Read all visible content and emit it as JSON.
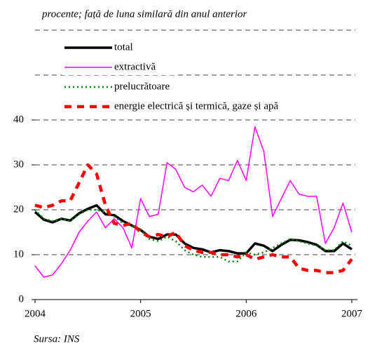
{
  "chart_data": {
    "type": "line",
    "subtitle": "procente; față de luna similară din anul anterior",
    "source": "Sursa: INS",
    "xlim": [
      2004,
      2007
    ],
    "xticks": [
      2004,
      2005,
      2006,
      2007
    ],
    "ylim": [
      0,
      60
    ],
    "yticks": [
      0,
      10,
      20,
      30,
      40
    ],
    "ygrid": [
      10,
      20,
      30,
      40,
      50,
      60
    ],
    "x": [
      2004,
      2004.083,
      2004.167,
      2004.25,
      2004.333,
      2004.417,
      2004.5,
      2004.583,
      2004.667,
      2004.75,
      2004.833,
      2004.917,
      2005,
      2005.083,
      2005.167,
      2005.25,
      2005.333,
      2005.417,
      2005.5,
      2005.583,
      2005.667,
      2005.75,
      2005.833,
      2005.917,
      2006,
      2006.083,
      2006.167,
      2006.25,
      2006.333,
      2006.417,
      2006.5,
      2006.583,
      2006.667,
      2006.75,
      2006.833,
      2006.917,
      2007
    ],
    "series": [
      {
        "name": "total",
        "color": "#000000",
        "line_style": "solid-thick",
        "values": [
          19.5,
          17.8,
          17.2,
          18,
          17.6,
          19.2,
          20.2,
          21,
          19,
          18.8,
          17.5,
          16.5,
          15.5,
          14,
          13.5,
          14.5,
          14.5,
          12.5,
          11.5,
          11.2,
          10.5,
          11,
          10.8,
          10.3,
          10.3,
          12.5,
          12,
          10.8,
          12.2,
          13.3,
          13.2,
          12.8,
          12.2,
          10.8,
          10.8,
          12.5,
          11.2
        ]
      },
      {
        "name": "extractivă",
        "color": "#ff00ff",
        "line_style": "solid",
        "values": [
          7.5,
          5,
          5.5,
          8,
          11,
          15,
          17.5,
          19.5,
          16,
          18,
          16,
          11.5,
          22.5,
          18.5,
          19,
          30.5,
          29,
          25,
          24,
          25.5,
          23,
          27,
          26.5,
          31,
          26.5,
          38.5,
          33,
          18.5,
          22.5,
          26.5,
          23.5,
          23,
          23,
          12.5,
          16,
          21.5,
          15
        ]
      },
      {
        "name": "prelucrătoare",
        "color": "#008000",
        "line_style": "dotted",
        "values": [
          20,
          18,
          17.5,
          18,
          17.5,
          19,
          20,
          20,
          19.5,
          18.5,
          17,
          16.5,
          15.5,
          13.5,
          13,
          14,
          13,
          11,
          10,
          9.5,
          9.5,
          9.5,
          8.5,
          8.5,
          10.5,
          10,
          10.5,
          11.5,
          12.5,
          13.5,
          13,
          12.5,
          12,
          11,
          11,
          13,
          12
        ]
      },
      {
        "name": "energie electrică și termică, gaze și apă",
        "color": "#ff0000",
        "line_style": "dashed",
        "values": [
          21,
          20.5,
          21,
          22,
          22,
          26,
          30,
          28,
          21,
          17,
          16.5,
          17,
          15,
          14,
          14.5,
          14,
          15,
          12,
          11,
          10.5,
          10.5,
          10,
          10,
          9.5,
          10,
          9,
          9.5,
          10,
          9.5,
          9.5,
          7,
          6.5,
          6.5,
          6,
          6,
          6.5,
          9
        ]
      }
    ]
  }
}
